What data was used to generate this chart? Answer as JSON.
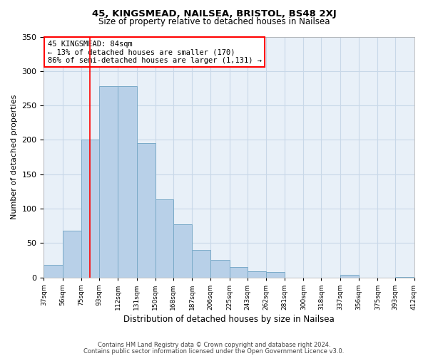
{
  "title1": "45, KINGSMEAD, NAILSEA, BRISTOL, BS48 2XJ",
  "title2": "Size of property relative to detached houses in Nailsea",
  "xlabel": "Distribution of detached houses by size in Nailsea",
  "ylabel": "Number of detached properties",
  "footnote1": "Contains HM Land Registry data © Crown copyright and database right 2024.",
  "footnote2": "Contains public sector information licensed under the Open Government Licence v3.0.",
  "annotation_line1": "45 KINGSMEAD: 84sqm",
  "annotation_line2": "← 13% of detached houses are smaller (170)",
  "annotation_line3": "86% of semi-detached houses are larger (1,131) →",
  "bin_edges": [
    37,
    56,
    75,
    93,
    112,
    131,
    150,
    168,
    187,
    206,
    225,
    243,
    262,
    281,
    300,
    318,
    337,
    356,
    375,
    393,
    412
  ],
  "bar_heights": [
    18,
    68,
    200,
    278,
    278,
    195,
    114,
    77,
    40,
    25,
    15,
    9,
    8,
    0,
    0,
    0,
    4,
    0,
    0,
    1
  ],
  "bar_color": "#b8d0e8",
  "bar_edge_color": "#7aaac8",
  "x_tick_labels": [
    "37sqm",
    "56sqm",
    "75sqm",
    "93sqm",
    "112sqm",
    "131sqm",
    "150sqm",
    "168sqm",
    "187sqm",
    "206sqm",
    "225sqm",
    "243sqm",
    "262sqm",
    "281sqm",
    "300sqm",
    "318sqm",
    "337sqm",
    "356sqm",
    "375sqm",
    "393sqm",
    "412sqm"
  ],
  "ylim": [
    0,
    350
  ],
  "yticks": [
    0,
    50,
    100,
    150,
    200,
    250,
    300,
    350
  ],
  "property_line_x": 84,
  "grid_color": "#c8d8e8",
  "background_color": "#e8f0f8"
}
